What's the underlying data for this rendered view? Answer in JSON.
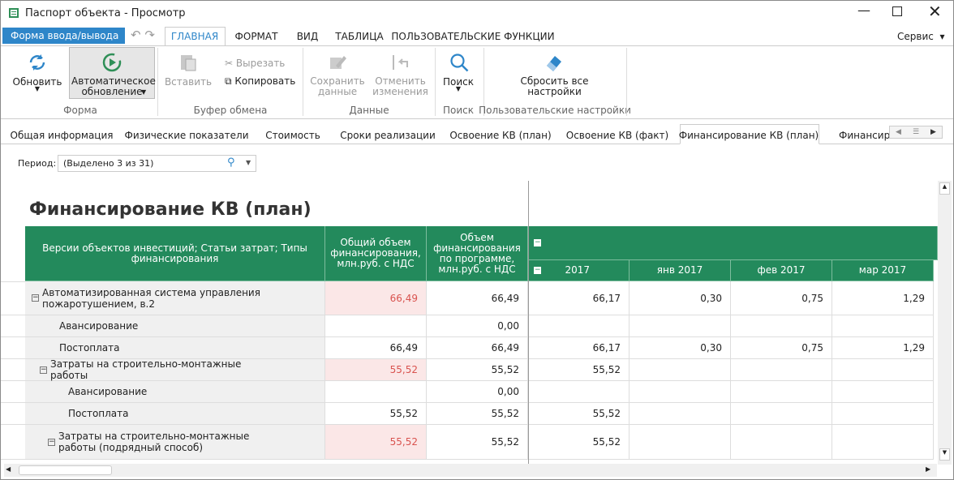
{
  "window": {
    "title": "Паспорт объекта - Просмотр"
  },
  "ribbon": {
    "form_button": "Форма ввода/вывода",
    "tabs": [
      "ГЛАВНАЯ",
      "ФОРМАТ",
      "ВИД",
      "ТАБЛИЦА",
      "ПОЛЬЗОВАТЕЛЬСКИЕ ФУНКЦИИ"
    ],
    "service": "Сервис",
    "groups": [
      {
        "label": "Форма",
        "buttons": [
          "Обновить",
          "Автоматическое обновление"
        ]
      },
      {
        "label": "Буфер обмена",
        "buttons": [
          "Вставить",
          "Вырезать",
          "Копировать"
        ]
      },
      {
        "label": "Данные",
        "buttons": [
          "Сохранить данные",
          "Отменить изменения"
        ]
      },
      {
        "label": "Поиск",
        "buttons": [
          "Поиск"
        ]
      },
      {
        "label": "Пользовательские настройки",
        "buttons": [
          "Сбросить все настройки"
        ]
      }
    ]
  },
  "doc_tabs": [
    "Общая информация",
    "Физические показатели",
    "Стоимость",
    "Сроки реализации",
    "Освоение КВ (план)",
    "Освоение КВ (факт)",
    "Финансирование КВ (план)",
    "Финансиро"
  ],
  "period": {
    "label": "Период:",
    "value": "(Выделено 3 из 31)"
  },
  "report": {
    "title": "Финансирование КВ (план)",
    "columns": [
      "Версии объектов инвестиций; Статьи затрат; Типы финансирования",
      "Общий объем финансирования, млн.руб. с НДС",
      "Объем финансирования по программе, млн.руб. с НДС"
    ],
    "periods": [
      "2017",
      "янв 2017",
      "фев 2017",
      "мар 2017"
    ],
    "rows": [
      {
        "label": "Автоматизированная система управления пожаротушением, в.2",
        "cells": [
          "66,49",
          "66,49",
          "66,17",
          "0,30",
          "0,75",
          "1,29"
        ]
      },
      {
        "label": "Авансирование",
        "cells": [
          null,
          "0,00",
          null,
          null,
          null,
          null
        ]
      },
      {
        "label": "Постоплата",
        "cells": [
          "66,49",
          "66,49",
          "66,17",
          "0,30",
          "0,75",
          "1,29"
        ]
      },
      {
        "label": "Затраты на строительно-монтажные работы",
        "cells": [
          "55,52",
          "55,52",
          "55,52",
          null,
          null,
          null
        ]
      },
      {
        "label": "Авансирование",
        "cells": [
          null,
          "0,00",
          null,
          null,
          null,
          null
        ]
      },
      {
        "label": "Постоплата",
        "cells": [
          "55,52",
          "55,52",
          "55,52",
          null,
          null,
          null
        ]
      },
      {
        "label": "Затраты на строительно-монтажные работы (подрядный способ)",
        "cells": [
          "55,52",
          "55,52",
          "55,52",
          null,
          null,
          null
        ]
      }
    ]
  }
}
